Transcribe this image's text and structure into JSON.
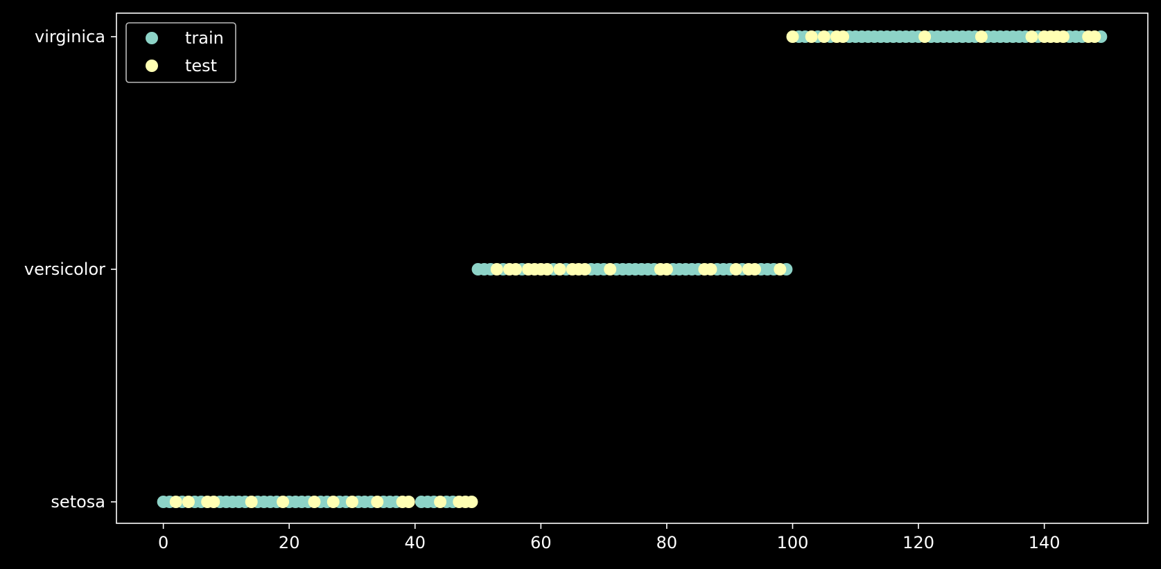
{
  "chart_data": {
    "type": "scatter",
    "title": "",
    "xlabel": "",
    "ylabel": "",
    "xlim": [
      -7.45,
      156.45
    ],
    "x_ticks": [
      0,
      20,
      40,
      60,
      80,
      100,
      120,
      140
    ],
    "categories": [
      "setosa",
      "versicolor",
      "virginica"
    ],
    "grid": false,
    "legend": {
      "placement": "top-left",
      "entries": [
        "train",
        "test"
      ]
    },
    "series": [
      {
        "name": "train",
        "color": "#8dd3c7",
        "points": [
          [
            0,
            "setosa"
          ],
          [
            1,
            "setosa"
          ],
          [
            3,
            "setosa"
          ],
          [
            5,
            "setosa"
          ],
          [
            6,
            "setosa"
          ],
          [
            9,
            "setosa"
          ],
          [
            10,
            "setosa"
          ],
          [
            11,
            "setosa"
          ],
          [
            12,
            "setosa"
          ],
          [
            13,
            "setosa"
          ],
          [
            15,
            "setosa"
          ],
          [
            16,
            "setosa"
          ],
          [
            17,
            "setosa"
          ],
          [
            18,
            "setosa"
          ],
          [
            20,
            "setosa"
          ],
          [
            21,
            "setosa"
          ],
          [
            22,
            "setosa"
          ],
          [
            23,
            "setosa"
          ],
          [
            25,
            "setosa"
          ],
          [
            26,
            "setosa"
          ],
          [
            28,
            "setosa"
          ],
          [
            29,
            "setosa"
          ],
          [
            31,
            "setosa"
          ],
          [
            32,
            "setosa"
          ],
          [
            33,
            "setosa"
          ],
          [
            35,
            "setosa"
          ],
          [
            36,
            "setosa"
          ],
          [
            37,
            "setosa"
          ],
          [
            41,
            "setosa"
          ],
          [
            42,
            "setosa"
          ],
          [
            43,
            "setosa"
          ],
          [
            45,
            "setosa"
          ],
          [
            46,
            "setosa"
          ],
          [
            50,
            "versicolor"
          ],
          [
            51,
            "versicolor"
          ],
          [
            52,
            "versicolor"
          ],
          [
            54,
            "versicolor"
          ],
          [
            57,
            "versicolor"
          ],
          [
            62,
            "versicolor"
          ],
          [
            64,
            "versicolor"
          ],
          [
            68,
            "versicolor"
          ],
          [
            69,
            "versicolor"
          ],
          [
            70,
            "versicolor"
          ],
          [
            72,
            "versicolor"
          ],
          [
            73,
            "versicolor"
          ],
          [
            74,
            "versicolor"
          ],
          [
            75,
            "versicolor"
          ],
          [
            76,
            "versicolor"
          ],
          [
            77,
            "versicolor"
          ],
          [
            78,
            "versicolor"
          ],
          [
            81,
            "versicolor"
          ],
          [
            82,
            "versicolor"
          ],
          [
            83,
            "versicolor"
          ],
          [
            84,
            "versicolor"
          ],
          [
            85,
            "versicolor"
          ],
          [
            88,
            "versicolor"
          ],
          [
            89,
            "versicolor"
          ],
          [
            90,
            "versicolor"
          ],
          [
            92,
            "versicolor"
          ],
          [
            95,
            "versicolor"
          ],
          [
            96,
            "versicolor"
          ],
          [
            97,
            "versicolor"
          ],
          [
            99,
            "versicolor"
          ],
          [
            101,
            "virginica"
          ],
          [
            102,
            "virginica"
          ],
          [
            104,
            "virginica"
          ],
          [
            106,
            "virginica"
          ],
          [
            109,
            "virginica"
          ],
          [
            110,
            "virginica"
          ],
          [
            111,
            "virginica"
          ],
          [
            112,
            "virginica"
          ],
          [
            113,
            "virginica"
          ],
          [
            114,
            "virginica"
          ],
          [
            115,
            "virginica"
          ],
          [
            116,
            "virginica"
          ],
          [
            117,
            "virginica"
          ],
          [
            118,
            "virginica"
          ],
          [
            119,
            "virginica"
          ],
          [
            120,
            "virginica"
          ],
          [
            122,
            "virginica"
          ],
          [
            123,
            "virginica"
          ],
          [
            124,
            "virginica"
          ],
          [
            125,
            "virginica"
          ],
          [
            126,
            "virginica"
          ],
          [
            127,
            "virginica"
          ],
          [
            128,
            "virginica"
          ],
          [
            129,
            "virginica"
          ],
          [
            131,
            "virginica"
          ],
          [
            132,
            "virginica"
          ],
          [
            133,
            "virginica"
          ],
          [
            134,
            "virginica"
          ],
          [
            135,
            "virginica"
          ],
          [
            136,
            "virginica"
          ],
          [
            137,
            "virginica"
          ],
          [
            139,
            "virginica"
          ],
          [
            144,
            "virginica"
          ],
          [
            145,
            "virginica"
          ],
          [
            146,
            "virginica"
          ],
          [
            149,
            "virginica"
          ]
        ]
      },
      {
        "name": "test",
        "color": "#ffffb3",
        "points": [
          [
            2,
            "setosa"
          ],
          [
            4,
            "setosa"
          ],
          [
            7,
            "setosa"
          ],
          [
            8,
            "setosa"
          ],
          [
            14,
            "setosa"
          ],
          [
            19,
            "setosa"
          ],
          [
            24,
            "setosa"
          ],
          [
            27,
            "setosa"
          ],
          [
            30,
            "setosa"
          ],
          [
            34,
            "setosa"
          ],
          [
            38,
            "setosa"
          ],
          [
            39,
            "setosa"
          ],
          [
            44,
            "setosa"
          ],
          [
            47,
            "setosa"
          ],
          [
            48,
            "setosa"
          ],
          [
            49,
            "setosa"
          ],
          [
            53,
            "versicolor"
          ],
          [
            55,
            "versicolor"
          ],
          [
            56,
            "versicolor"
          ],
          [
            58,
            "versicolor"
          ],
          [
            59,
            "versicolor"
          ],
          [
            60,
            "versicolor"
          ],
          [
            61,
            "versicolor"
          ],
          [
            63,
            "versicolor"
          ],
          [
            65,
            "versicolor"
          ],
          [
            66,
            "versicolor"
          ],
          [
            67,
            "versicolor"
          ],
          [
            71,
            "versicolor"
          ],
          [
            79,
            "versicolor"
          ],
          [
            80,
            "versicolor"
          ],
          [
            86,
            "versicolor"
          ],
          [
            87,
            "versicolor"
          ],
          [
            91,
            "versicolor"
          ],
          [
            93,
            "versicolor"
          ],
          [
            94,
            "versicolor"
          ],
          [
            98,
            "versicolor"
          ],
          [
            100,
            "virginica"
          ],
          [
            103,
            "virginica"
          ],
          [
            105,
            "virginica"
          ],
          [
            107,
            "virginica"
          ],
          [
            108,
            "virginica"
          ],
          [
            121,
            "virginica"
          ],
          [
            130,
            "virginica"
          ],
          [
            138,
            "virginica"
          ],
          [
            140,
            "virginica"
          ],
          [
            141,
            "virginica"
          ],
          [
            142,
            "virginica"
          ],
          [
            143,
            "virginica"
          ],
          [
            147,
            "virginica"
          ],
          [
            148,
            "virginica"
          ]
        ]
      }
    ]
  }
}
